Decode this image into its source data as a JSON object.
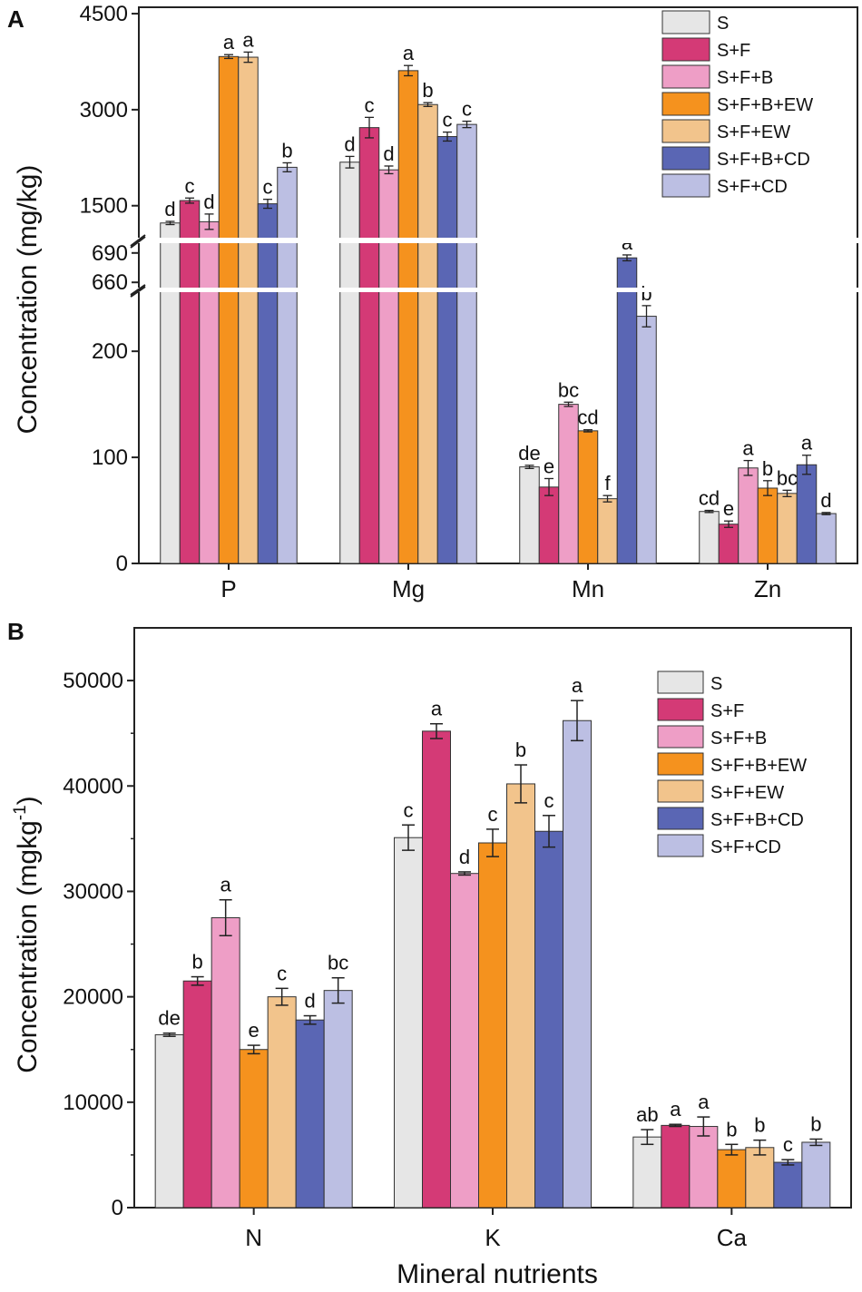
{
  "chart_data": [
    {
      "type": "bar",
      "panel": "A",
      "ylabel": "Concentration (mg/kg)",
      "xlabel": "",
      "categories": [
        "P",
        "Mg",
        "Mn",
        "Zn"
      ],
      "axis_break": {
        "segments": [
          {
            "range": [
              0,
              260
            ],
            "ticks": [
              0,
              100,
              200
            ]
          },
          {
            "range": [
              650,
              700
            ],
            "ticks": [
              660,
              690
            ]
          },
          {
            "range": [
              1000,
              4600
            ],
            "ticks": [
              1500,
              3000,
              4500
            ]
          }
        ]
      },
      "series": [
        {
          "name": "S",
          "color": "#e6e6e6",
          "values": [
            1230,
            2180,
            91,
            49
          ],
          "errors": [
            25,
            90,
            1.5,
            1
          ],
          "letters": [
            "d",
            "d",
            "de",
            "cd"
          ]
        },
        {
          "name": "S+F",
          "color": "#d43a76",
          "values": [
            1580,
            2720,
            72,
            37
          ],
          "errors": [
            40,
            160,
            8,
            3
          ],
          "letters": [
            "c",
            "c",
            "e",
            "e"
          ]
        },
        {
          "name": "S+F+B",
          "color": "#ee9ec6",
          "values": [
            1250,
            2060,
            150,
            90
          ],
          "errors": [
            120,
            60,
            2,
            7
          ],
          "letters": [
            "d",
            "d",
            "bc",
            "a"
          ]
        },
        {
          "name": "S+F+B+EW",
          "color": "#f5921e",
          "values": [
            3830,
            3610,
            125,
            71
          ],
          "errors": [
            30,
            80,
            1,
            7
          ],
          "letters": [
            "a",
            "a",
            "cd",
            "b"
          ]
        },
        {
          "name": "S+F+EW",
          "color": "#f2c48c",
          "values": [
            3820,
            3080,
            61,
            66
          ],
          "errors": [
            80,
            30,
            3,
            3
          ],
          "letters": [
            "a",
            "b",
            "f",
            "bc"
          ]
        },
        {
          "name": "S+F+B+CD",
          "color": "#5a66b4",
          "values": [
            1530,
            2580,
            685,
            93
          ],
          "errors": [
            70,
            70,
            3,
            9
          ],
          "letters": [
            "c",
            "c",
            "a",
            "a"
          ]
        },
        {
          "name": "S+F+CD",
          "color": "#bcbfe3",
          "values": [
            2100,
            2770,
            233,
            47
          ],
          "errors": [
            70,
            50,
            10,
            1
          ],
          "letters": [
            "b",
            "c",
            "b",
            "d"
          ]
        }
      ]
    },
    {
      "type": "bar",
      "panel": "B",
      "ylabel": "Concentration (mgkg",
      "ylabel_sup": "-1",
      "ylabel_end": ")",
      "xlabel": "Mineral nutrients",
      "categories": [
        "N",
        "K",
        "Ca"
      ],
      "ylim": [
        0,
        55000
      ],
      "yticks": [
        0,
        10000,
        20000,
        30000,
        40000,
        50000
      ],
      "series": [
        {
          "name": "S",
          "color": "#e6e6e6",
          "values": [
            16400,
            35100,
            6700
          ],
          "errors": [
            150,
            1200,
            700
          ],
          "letters": [
            "de",
            "c",
            "ab"
          ]
        },
        {
          "name": "S+F",
          "color": "#d43a76",
          "values": [
            21500,
            45200,
            7800
          ],
          "errors": [
            400,
            700,
            100
          ],
          "letters": [
            "b",
            "a",
            "a"
          ]
        },
        {
          "name": "S+F+B",
          "color": "#ee9ec6",
          "values": [
            27500,
            31700,
            7700
          ],
          "errors": [
            1700,
            150,
            900
          ],
          "letters": [
            "a",
            "d",
            "a"
          ]
        },
        {
          "name": "S+F+B+EW",
          "color": "#f5921e",
          "values": [
            15000,
            34600,
            5500
          ],
          "errors": [
            400,
            1300,
            500
          ],
          "letters": [
            "e",
            "c",
            "b"
          ]
        },
        {
          "name": "S+F+EW",
          "color": "#f2c48c",
          "values": [
            20000,
            40200,
            5700
          ],
          "errors": [
            800,
            1800,
            700
          ],
          "letters": [
            "c",
            "b",
            "b"
          ]
        },
        {
          "name": "S+F+B+CD",
          "color": "#5a66b4",
          "values": [
            17800,
            35700,
            4300
          ],
          "errors": [
            400,
            1500,
            250
          ],
          "letters": [
            "d",
            "c",
            "c"
          ]
        },
        {
          "name": "S+F+CD",
          "color": "#bcbfe3",
          "values": [
            20600,
            46200,
            6200
          ],
          "errors": [
            1200,
            1900,
            300
          ],
          "letters": [
            "bc",
            "a",
            "b"
          ]
        }
      ]
    }
  ]
}
